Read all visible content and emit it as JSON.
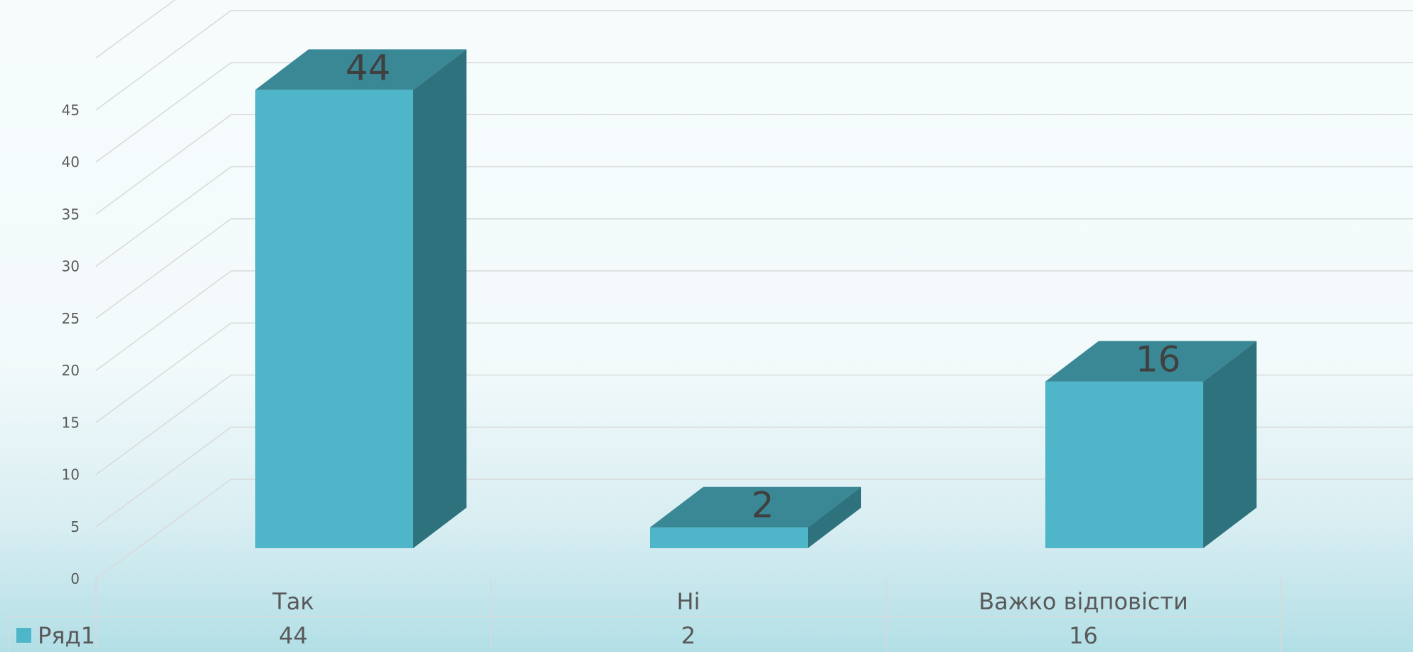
{
  "chart_data": {
    "type": "bar",
    "three_d": true,
    "categories": [
      "Так",
      "Ні",
      "Важко відповісти"
    ],
    "series": [
      {
        "name": "Ряд1",
        "values": [
          44,
          2,
          16
        ]
      }
    ],
    "data_labels": [
      "44",
      "2",
      "16"
    ],
    "y_ticks": [
      "0",
      "5",
      "10",
      "15",
      "20",
      "25",
      "30",
      "35",
      "40",
      "45"
    ],
    "ylim": [
      0,
      50
    ],
    "grid": true,
    "data_table": true,
    "legend": "in-data-table",
    "colors": {
      "front": "#4fb5c9",
      "top": "#3a8896",
      "side": "#2e727e",
      "grid": "#d9d9d9",
      "table_border": "#d9d9d9"
    }
  }
}
